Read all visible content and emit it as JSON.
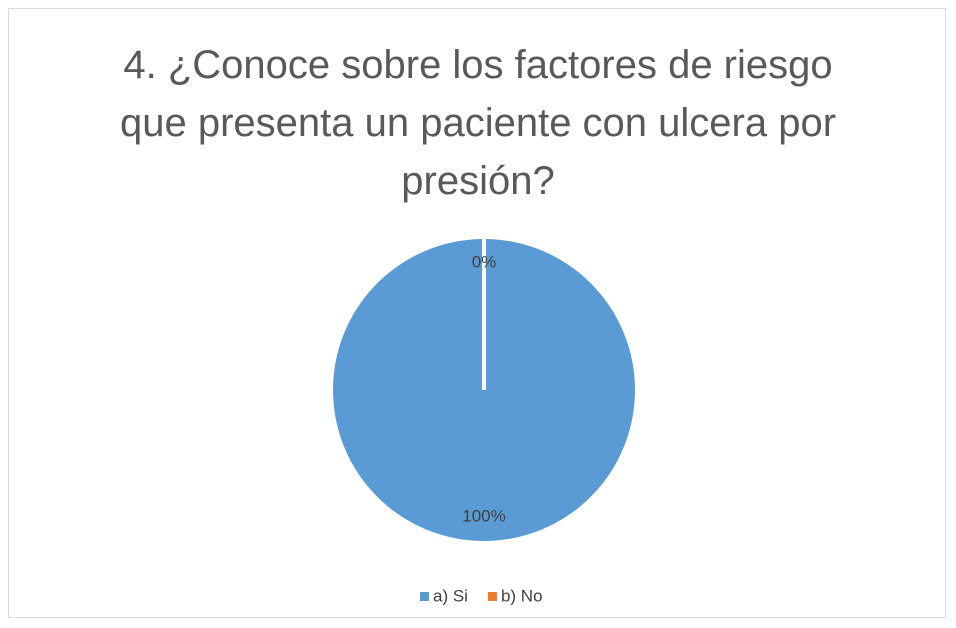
{
  "chart_data": {
    "type": "pie",
    "title": "4. ¿Conoce sobre los factores de riesgo que presenta un paciente con ulcera por presión?",
    "categories": [
      "a) Si",
      "b) No"
    ],
    "values": [
      100,
      0
    ],
    "value_labels": [
      "100%",
      "0%"
    ],
    "colors": [
      "#5b9bd5",
      "#ed7d31"
    ],
    "legend": "bottom"
  }
}
